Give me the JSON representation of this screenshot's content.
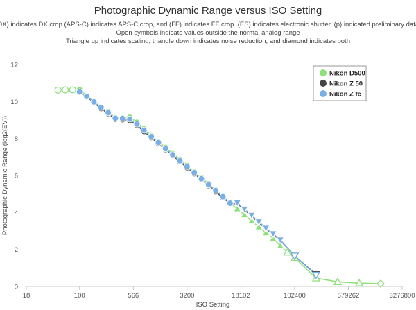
{
  "chart_data": {
    "type": "scatter",
    "title": "Photographic Dynamic Range versus ISO Setting",
    "subtitle": [
      "(DX) indicates DX crop (APS-C) indicates APS-C crop, and (FF) indicates FF crop. (ES) indicates electronic shutter. (p) indicated preliminary data.",
      "Open symbols indicate values outside the normal analog range",
      "Triangle up indicates scaling, triangle down indicates noise reduction, and diamond indicates both"
    ],
    "xlabel": "ISO Setting",
    "ylabel": "Photographic Dynamic Range (log2(EV))",
    "x_scale": "log",
    "xlim": [
      18,
      3276800
    ],
    "ylim": [
      0,
      12
    ],
    "x_ticks": [
      18,
      100,
      566,
      3200,
      18102,
      102400,
      579262,
      3276800
    ],
    "x_tick_labels": [
      "18",
      "100",
      "566",
      "3200",
      "18102",
      "102400",
      "579262",
      "3276800"
    ],
    "y_ticks": [
      0,
      2,
      4,
      6,
      8,
      10,
      12
    ],
    "y_tick_labels": [
      "0",
      "2",
      "4",
      "6",
      "8",
      "10",
      "12"
    ],
    "grid": false,
    "legend_position": "top-right",
    "series": [
      {
        "name": "Nikon D500",
        "color": "#8ee07a",
        "points": [
          {
            "x": 50,
            "y": 10.62,
            "m": "open-circle"
          },
          {
            "x": 63,
            "y": 10.63,
            "m": "open-circle"
          },
          {
            "x": 80,
            "y": 10.63,
            "m": "open-circle"
          },
          {
            "x": 100,
            "y": 10.65,
            "m": "circle"
          },
          {
            "x": 126,
            "y": 10.3,
            "m": "circle"
          },
          {
            "x": 159,
            "y": 10.0,
            "m": "circle"
          },
          {
            "x": 200,
            "y": 9.7,
            "m": "circle"
          },
          {
            "x": 252,
            "y": 9.45,
            "m": "circle"
          },
          {
            "x": 317,
            "y": 9.12,
            "m": "circle"
          },
          {
            "x": 400,
            "y": 9.12,
            "m": "circle"
          },
          {
            "x": 504,
            "y": 9.15,
            "m": "circle"
          },
          {
            "x": 635,
            "y": 8.88,
            "m": "circle"
          },
          {
            "x": 800,
            "y": 8.52,
            "m": "circle"
          },
          {
            "x": 1008,
            "y": 8.15,
            "m": "circle"
          },
          {
            "x": 1270,
            "y": 7.82,
            "m": "circle"
          },
          {
            "x": 1600,
            "y": 7.52,
            "m": "circle"
          },
          {
            "x": 2016,
            "y": 7.18,
            "m": "circle"
          },
          {
            "x": 2540,
            "y": 6.88,
            "m": "circle"
          },
          {
            "x": 3200,
            "y": 6.55,
            "m": "circle"
          },
          {
            "x": 4032,
            "y": 6.2,
            "m": "circle"
          },
          {
            "x": 5080,
            "y": 5.88,
            "m": "circle"
          },
          {
            "x": 6400,
            "y": 5.55,
            "m": "circle"
          },
          {
            "x": 8063,
            "y": 5.22,
            "m": "circle"
          },
          {
            "x": 10159,
            "y": 4.88,
            "m": "circle"
          },
          {
            "x": 12800,
            "y": 4.52,
            "m": "circle"
          },
          {
            "x": 16127,
            "y": 4.2,
            "m": "triangle-up"
          },
          {
            "x": 20319,
            "y": 3.88,
            "m": "triangle-up"
          },
          {
            "x": 25600,
            "y": 3.55,
            "m": "triangle-up"
          },
          {
            "x": 32254,
            "y": 3.22,
            "m": "triangle-up"
          },
          {
            "x": 40637,
            "y": 2.9,
            "m": "triangle-up"
          },
          {
            "x": 51200,
            "y": 2.6,
            "m": "triangle-up"
          },
          {
            "x": 64508,
            "y": 2.2,
            "m": "triangle-up"
          },
          {
            "x": 81275,
            "y": 1.85,
            "m": "open-triangle-up"
          },
          {
            "x": 102400,
            "y": 1.55,
            "m": "open-triangle-up"
          },
          {
            "x": 204800,
            "y": 0.45,
            "m": "open-triangle-up"
          },
          {
            "x": 409600,
            "y": 0.25,
            "m": "open-triangle-up"
          },
          {
            "x": 819200,
            "y": 0.18,
            "m": "open-triangle-up"
          },
          {
            "x": 1638400,
            "y": 0.15,
            "m": "open-diamond"
          }
        ]
      },
      {
        "name": "Nikon Z 50",
        "color": "#444444",
        "points": [
          {
            "x": 100,
            "y": 10.5,
            "m": "circle"
          },
          {
            "x": 126,
            "y": 10.25,
            "m": "circle"
          },
          {
            "x": 159,
            "y": 9.95,
            "m": "circle"
          },
          {
            "x": 200,
            "y": 9.62,
            "m": "circle"
          },
          {
            "x": 252,
            "y": 9.35,
            "m": "circle"
          },
          {
            "x": 317,
            "y": 9.05,
            "m": "circle"
          },
          {
            "x": 400,
            "y": 9.02,
            "m": "circle"
          },
          {
            "x": 504,
            "y": 8.98,
            "m": "circle"
          },
          {
            "x": 635,
            "y": 8.72,
            "m": "circle"
          },
          {
            "x": 800,
            "y": 8.38,
            "m": "circle"
          },
          {
            "x": 1008,
            "y": 8.05,
            "m": "circle"
          },
          {
            "x": 1270,
            "y": 7.72,
            "m": "circle"
          },
          {
            "x": 1600,
            "y": 7.4,
            "m": "circle"
          },
          {
            "x": 2016,
            "y": 7.08,
            "m": "circle"
          },
          {
            "x": 2540,
            "y": 6.75,
            "m": "circle"
          },
          {
            "x": 3200,
            "y": 6.42,
            "m": "circle"
          },
          {
            "x": 4032,
            "y": 6.1,
            "m": "circle"
          },
          {
            "x": 5080,
            "y": 5.78,
            "m": "circle"
          },
          {
            "x": 6400,
            "y": 5.45,
            "m": "circle"
          },
          {
            "x": 8063,
            "y": 5.12,
            "m": "circle"
          },
          {
            "x": 10159,
            "y": 4.8,
            "m": "circle"
          },
          {
            "x": 12800,
            "y": 4.48,
            "m": "circle"
          },
          {
            "x": 16127,
            "y": 4.48,
            "m": "triangle-down"
          },
          {
            "x": 20319,
            "y": 4.15,
            "m": "triangle-down"
          },
          {
            "x": 25600,
            "y": 3.8,
            "m": "triangle-down"
          },
          {
            "x": 32254,
            "y": 3.45,
            "m": "triangle-down"
          },
          {
            "x": 40637,
            "y": 3.12,
            "m": "triangle-down"
          },
          {
            "x": 51200,
            "y": 2.82,
            "m": "triangle-down"
          },
          {
            "x": 64508,
            "y": 2.5,
            "m": "triangle-down"
          },
          {
            "x": 102400,
            "y": 1.65,
            "m": "open-triangle-down"
          },
          {
            "x": 204800,
            "y": 0.65,
            "m": "open-triangle-down"
          }
        ]
      },
      {
        "name": "Nikon Z fc",
        "color": "#7aaee6",
        "points": [
          {
            "x": 100,
            "y": 10.52,
            "m": "circle"
          },
          {
            "x": 126,
            "y": 10.28,
            "m": "circle"
          },
          {
            "x": 159,
            "y": 9.98,
            "m": "circle"
          },
          {
            "x": 200,
            "y": 9.68,
            "m": "circle"
          },
          {
            "x": 252,
            "y": 9.4,
            "m": "circle"
          },
          {
            "x": 317,
            "y": 9.1,
            "m": "circle"
          },
          {
            "x": 400,
            "y": 9.08,
            "m": "circle"
          },
          {
            "x": 504,
            "y": 9.05,
            "m": "circle"
          },
          {
            "x": 635,
            "y": 8.78,
            "m": "circle"
          },
          {
            "x": 800,
            "y": 8.45,
            "m": "circle"
          },
          {
            "x": 1008,
            "y": 8.1,
            "m": "circle"
          },
          {
            "x": 1270,
            "y": 7.78,
            "m": "circle"
          },
          {
            "x": 1600,
            "y": 7.45,
            "m": "circle"
          },
          {
            "x": 2016,
            "y": 7.12,
            "m": "circle"
          },
          {
            "x": 2540,
            "y": 6.8,
            "m": "circle"
          },
          {
            "x": 3200,
            "y": 6.48,
            "m": "circle"
          },
          {
            "x": 4032,
            "y": 6.15,
            "m": "circle"
          },
          {
            "x": 5080,
            "y": 5.82,
            "m": "circle"
          },
          {
            "x": 6400,
            "y": 5.5,
            "m": "circle"
          },
          {
            "x": 8063,
            "y": 5.18,
            "m": "circle"
          },
          {
            "x": 10159,
            "y": 4.85,
            "m": "circle"
          },
          {
            "x": 12800,
            "y": 4.5,
            "m": "circle"
          },
          {
            "x": 16127,
            "y": 4.52,
            "m": "triangle-down"
          },
          {
            "x": 20319,
            "y": 4.18,
            "m": "triangle-down"
          },
          {
            "x": 25600,
            "y": 3.85,
            "m": "triangle-down"
          },
          {
            "x": 32254,
            "y": 3.5,
            "m": "triangle-down"
          },
          {
            "x": 40637,
            "y": 3.15,
            "m": "triangle-down"
          },
          {
            "x": 51200,
            "y": 2.85,
            "m": "triangle-down"
          },
          {
            "x": 64508,
            "y": 2.52,
            "m": "triangle-down"
          },
          {
            "x": 102400,
            "y": 1.65,
            "m": "open-triangle-down"
          },
          {
            "x": 204800,
            "y": 0.62,
            "m": "open-triangle-down"
          }
        ]
      }
    ]
  }
}
